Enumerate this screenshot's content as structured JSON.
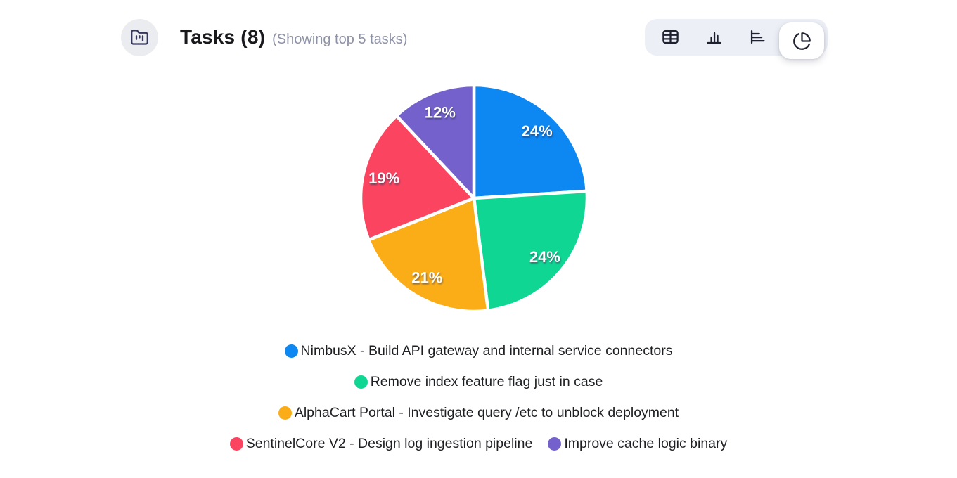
{
  "header": {
    "icon": "folder-kanban-icon",
    "title": "Tasks (8)",
    "subtitle": "(Showing top 5 tasks)"
  },
  "toolbar": {
    "view_buttons": [
      {
        "id": "table-view-button",
        "icon": "table-icon",
        "selected": false
      },
      {
        "id": "column-chart-view-button",
        "icon": "column-chart-icon",
        "selected": false
      },
      {
        "id": "row-chart-view-button",
        "icon": "row-chart-icon",
        "selected": false
      },
      {
        "id": "pie-chart-view-button",
        "icon": "pie-chart-icon",
        "selected": true
      }
    ]
  },
  "chart_data": {
    "type": "pie",
    "title": "Tasks (8)",
    "subtitle": "(Showing top 5 tasks)",
    "unit": "%",
    "start_angle_deg": 0,
    "direction": "clockwise",
    "legend_position": "bottom",
    "slices": [
      {
        "label": "NimbusX - Build API gateway and internal service connectors",
        "value": 24,
        "display": "24%",
        "color": "#0d87f2"
      },
      {
        "label": "Remove index feature flag just in case",
        "value": 24,
        "display": "24%",
        "color": "#10d693"
      },
      {
        "label": "AlphaCart Portal - Investigate query /etc to unblock deployment",
        "value": 21,
        "display": "21%",
        "color": "#fbad18"
      },
      {
        "label": "SentinelCore V2 - Design log ingestion pipeline",
        "value": 19,
        "display": "19%",
        "color": "#fb4560"
      },
      {
        "label": "Improve cache logic binary",
        "value": 12,
        "display": "12%",
        "color": "#7561cb"
      }
    ]
  },
  "colors": {
    "slice_gap": "#ffffff",
    "toolbar_bg": "#edeff6",
    "badge_bg": "#ebecef",
    "toolbar_icon": "#1e2130",
    "badge_icon": "#34365e",
    "title_text": "#19191d",
    "subtitle_text": "#8d92a6",
    "legend_text": "#1d1f23"
  }
}
